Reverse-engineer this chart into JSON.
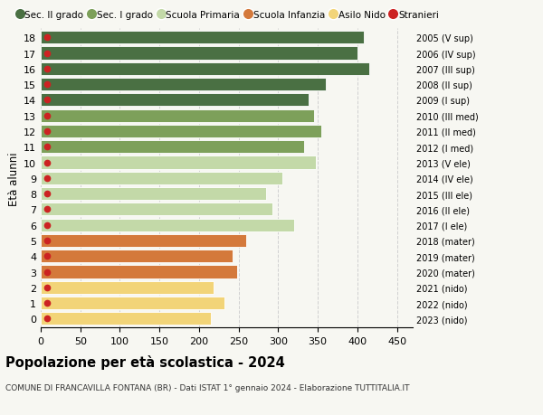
{
  "ages": [
    18,
    17,
    16,
    15,
    14,
    13,
    12,
    11,
    10,
    9,
    8,
    7,
    6,
    5,
    4,
    3,
    2,
    1,
    0
  ],
  "values": [
    408,
    400,
    415,
    360,
    338,
    345,
    355,
    333,
    348,
    305,
    285,
    293,
    320,
    260,
    243,
    248,
    218,
    232,
    215
  ],
  "stranieri_x": [
    8,
    8,
    8,
    8,
    8,
    8,
    8,
    8,
    8,
    8,
    8,
    8,
    8,
    8,
    8,
    8,
    8,
    8,
    8
  ],
  "right_labels": [
    "2005 (V sup)",
    "2006 (IV sup)",
    "2007 (III sup)",
    "2008 (II sup)",
    "2009 (I sup)",
    "2010 (III med)",
    "2011 (II med)",
    "2012 (I med)",
    "2013 (V ele)",
    "2014 (IV ele)",
    "2015 (III ele)",
    "2016 (II ele)",
    "2017 (I ele)",
    "2018 (mater)",
    "2019 (mater)",
    "2020 (mater)",
    "2021 (nido)",
    "2022 (nido)",
    "2023 (nido)"
  ],
  "bar_colors": [
    "#4a7043",
    "#4a7043",
    "#4a7043",
    "#4a7043",
    "#4a7043",
    "#7da05a",
    "#7da05a",
    "#7da05a",
    "#c3d9a8",
    "#c3d9a8",
    "#c3d9a8",
    "#c3d9a8",
    "#c3d9a8",
    "#d4793b",
    "#d4793b",
    "#d4793b",
    "#f2d478",
    "#f2d478",
    "#f2d478"
  ],
  "legend_labels": [
    "Sec. II grado",
    "Sec. I grado",
    "Scuola Primaria",
    "Scuola Infanzia",
    "Asilo Nido",
    "Stranieri"
  ],
  "legend_colors": [
    "#4a7043",
    "#7da05a",
    "#c3d9a8",
    "#d4793b",
    "#f2d478",
    "#cc2222"
  ],
  "stranieri_color": "#cc2222",
  "ylabel": "Età alunni",
  "title": "Popolazione per età scolastica - 2024",
  "subtitle": "COMUNE DI FRANCAVILLA FONTANA (BR) - Dati ISTAT 1° gennaio 2024 - Elaborazione TUTTITALIA.IT",
  "xlim": [
    0,
    470
  ],
  "xticks": [
    0,
    50,
    100,
    150,
    200,
    250,
    300,
    350,
    400,
    450
  ],
  "background_color": "#f7f7f2",
  "grid_color": "#d0d0d0"
}
